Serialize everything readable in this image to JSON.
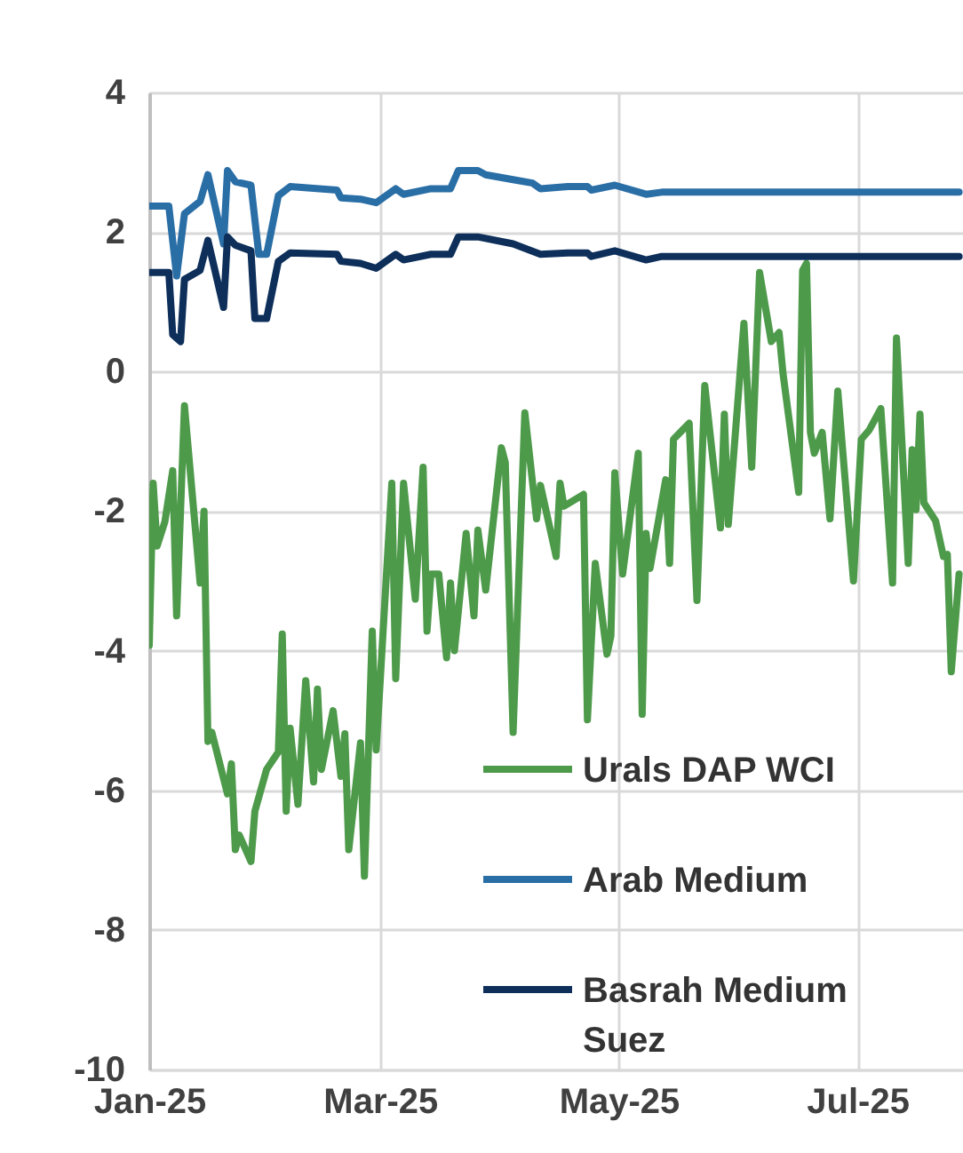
{
  "chart_data": {
    "type": "line",
    "xlim": [
      "2025-01-01",
      "2025-07-28"
    ],
    "xticks": [
      {
        "value": "2025-01-01",
        "label": "Jan-25"
      },
      {
        "value": "2025-03-01",
        "label": "Mar-25"
      },
      {
        "value": "2025-05-01",
        "label": "May-25"
      },
      {
        "value": "2025-07-01",
        "label": "Jul-25"
      }
    ],
    "ylim": [
      -10,
      4
    ],
    "yticks": [
      -10,
      -8,
      -6,
      -4,
      -2,
      0,
      2,
      4
    ],
    "grid": true,
    "legend": "bottom right",
    "line_style": "solid",
    "marker": "none",
    "series": [
      {
        "name": "Urals DAP WCI",
        "color": "#4e9a4b",
        "x": [
          "2025-01-01",
          "2025-01-02",
          "2025-01-03",
          "2025-01-05",
          "2025-01-07",
          "2025-01-08",
          "2025-01-10",
          "2025-01-14",
          "2025-01-15",
          "2025-01-16",
          "2025-01-17",
          "2025-01-21",
          "2025-01-22",
          "2025-01-23",
          "2025-01-24",
          "2025-01-27",
          "2025-01-28",
          "2025-01-31",
          "2025-02-03",
          "2025-02-04",
          "2025-02-05",
          "2025-02-06",
          "2025-02-08",
          "2025-02-10",
          "2025-02-12",
          "2025-02-13",
          "2025-02-14",
          "2025-02-17",
          "2025-02-19",
          "2025-02-20",
          "2025-02-21",
          "2025-02-24",
          "2025-02-25",
          "2025-02-27",
          "2025-02-28",
          "2025-03-04",
          "2025-03-05",
          "2025-03-07",
          "2025-03-10",
          "2025-03-12",
          "2025-03-13",
          "2025-03-14",
          "2025-03-16",
          "2025-03-18",
          "2025-03-19",
          "2025-03-20",
          "2025-03-23",
          "2025-03-25",
          "2025-03-26",
          "2025-03-28",
          "2025-04-01",
          "2025-04-02",
          "2025-04-04",
          "2025-04-07",
          "2025-04-10",
          "2025-04-11",
          "2025-04-15",
          "2025-04-16",
          "2025-04-17",
          "2025-04-22",
          "2025-04-23",
          "2025-04-25",
          "2025-04-28",
          "2025-04-29",
          "2025-04-30",
          "2025-05-02",
          "2025-05-06",
          "2025-05-07",
          "2025-05-08",
          "2025-05-09",
          "2025-05-13",
          "2025-05-14",
          "2025-05-15",
          "2025-05-19",
          "2025-05-21",
          "2025-05-23",
          "2025-05-27",
          "2025-05-28",
          "2025-05-29",
          "2025-06-02",
          "2025-06-04",
          "2025-06-06",
          "2025-06-09",
          "2025-06-11",
          "2025-06-12",
          "2025-06-16",
          "2025-06-17",
          "2025-06-18",
          "2025-06-19",
          "2025-06-20",
          "2025-06-22",
          "2025-06-24",
          "2025-06-26",
          "2025-06-30",
          "2025-07-02",
          "2025-07-04",
          "2025-07-07",
          "2025-07-10",
          "2025-07-11",
          "2025-07-14",
          "2025-07-15",
          "2025-07-16",
          "2025-07-17",
          "2025-07-18",
          "2025-07-21",
          "2025-07-23",
          "2025-07-24",
          "2025-07-25",
          "2025-07-27"
        ],
        "values": [
          -3.92,
          -1.6,
          -2.5,
          -2.15,
          -1.42,
          -3.5,
          -0.49,
          -3.03,
          -2.0,
          -5.3,
          -5.17,
          -6.05,
          -5.62,
          -6.85,
          -6.64,
          -7.02,
          -6.3,
          -5.7,
          -5.45,
          -3.76,
          -6.3,
          -5.11,
          -6.2,
          -4.43,
          -5.88,
          -4.55,
          -5.7,
          -4.86,
          -5.8,
          -5.19,
          -6.85,
          -5.32,
          -7.23,
          -3.72,
          -5.42,
          -1.6,
          -4.4,
          -1.6,
          -3.26,
          -1.37,
          -3.72,
          -2.9,
          -2.9,
          -4.1,
          -3.03,
          -4.0,
          -2.32,
          -3.5,
          -2.27,
          -3.13,
          -1.09,
          -1.3,
          -5.17,
          -0.59,
          -2.11,
          -1.63,
          -2.65,
          -1.6,
          -1.93,
          -1.76,
          -4.99,
          -2.75,
          -4.05,
          -3.79,
          -1.45,
          -2.9,
          -1.17,
          -4.91,
          -2.32,
          -2.82,
          -1.55,
          -2.75,
          -0.97,
          -0.74,
          -3.28,
          -0.2,
          -2.24,
          -0.61,
          -2.19,
          0.69,
          -1.37,
          1.42,
          0.43,
          0.56,
          -0.03,
          -1.73,
          1.45,
          1.55,
          -0.87,
          -1.17,
          -0.87,
          -2.11,
          -0.28,
          -3.0,
          -0.97,
          -0.84,
          -0.53,
          -3.03,
          0.48,
          -2.75,
          -1.12,
          -1.98,
          -0.61,
          -1.88,
          -2.14,
          -2.65,
          -2.62,
          -4.3,
          -2.9
        ]
      },
      {
        "name": "Arab Medium",
        "color": "#2a6ea6",
        "x": [
          "2025-01-01",
          "2025-01-06",
          "2025-01-08",
          "2025-01-10",
          "2025-01-14",
          "2025-01-16",
          "2025-01-20",
          "2025-01-21",
          "2025-01-23",
          "2025-01-27",
          "2025-01-29",
          "2025-01-31",
          "2025-02-03",
          "2025-02-06",
          "2025-02-18",
          "2025-02-19",
          "2025-02-24",
          "2025-02-28",
          "2025-03-05",
          "2025-03-07",
          "2025-03-14",
          "2025-03-19",
          "2025-03-21",
          "2025-03-26",
          "2025-03-28",
          "2025-04-04",
          "2025-04-09",
          "2025-04-11",
          "2025-04-18",
          "2025-04-23",
          "2025-04-24",
          "2025-04-30",
          "2025-05-08",
          "2025-05-12",
          "2025-07-27"
        ],
        "values": [
          2.37,
          2.37,
          1.37,
          2.26,
          2.44,
          2.82,
          1.83,
          2.88,
          2.72,
          2.67,
          1.68,
          1.68,
          2.52,
          2.65,
          2.6,
          2.49,
          2.47,
          2.42,
          2.62,
          2.54,
          2.62,
          2.62,
          2.88,
          2.88,
          2.82,
          2.75,
          2.7,
          2.62,
          2.65,
          2.65,
          2.6,
          2.67,
          2.54,
          2.57,
          2.57
        ]
      },
      {
        "name": "Basrah Medium Suez",
        "color": "#0d2f5a",
        "x": [
          "2025-01-01",
          "2025-01-06",
          "2025-01-07",
          "2025-01-09",
          "2025-01-10",
          "2025-01-14",
          "2025-01-16",
          "2025-01-20",
          "2025-01-21",
          "2025-01-23",
          "2025-01-27",
          "2025-01-28",
          "2025-01-31",
          "2025-02-03",
          "2025-02-06",
          "2025-02-18",
          "2025-02-19",
          "2025-02-24",
          "2025-02-28",
          "2025-03-05",
          "2025-03-07",
          "2025-03-14",
          "2025-03-19",
          "2025-03-21",
          "2025-03-26",
          "2025-04-04",
          "2025-04-11",
          "2025-04-18",
          "2025-04-23",
          "2025-04-24",
          "2025-04-30",
          "2025-05-08",
          "2025-05-12",
          "2025-07-27"
        ],
        "values": [
          1.42,
          1.42,
          0.53,
          0.43,
          1.32,
          1.45,
          1.88,
          0.92,
          1.93,
          1.81,
          1.73,
          0.76,
          0.76,
          1.58,
          1.7,
          1.68,
          1.58,
          1.55,
          1.48,
          1.68,
          1.6,
          1.68,
          1.68,
          1.93,
          1.93,
          1.83,
          1.68,
          1.7,
          1.7,
          1.65,
          1.73,
          1.6,
          1.65,
          1.65
        ]
      }
    ]
  }
}
